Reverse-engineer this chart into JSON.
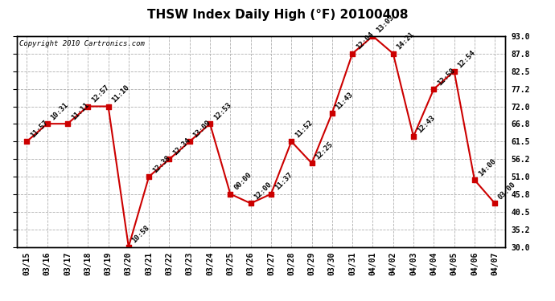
{
  "title": "THSW Index Daily High (°F) 20100408",
  "copyright": "Copyright 2010 Cartronics.com",
  "dates": [
    "03/15",
    "03/16",
    "03/17",
    "03/18",
    "03/19",
    "03/20",
    "03/21",
    "03/22",
    "03/23",
    "03/24",
    "03/25",
    "03/26",
    "03/27",
    "03/28",
    "03/29",
    "03/30",
    "03/31",
    "04/01",
    "04/02",
    "04/03",
    "04/04",
    "04/05",
    "04/06",
    "04/07"
  ],
  "values": [
    61.5,
    66.8,
    66.8,
    72.0,
    72.0,
    30.0,
    51.0,
    56.2,
    61.5,
    66.8,
    45.8,
    43.0,
    45.8,
    61.5,
    55.0,
    70.0,
    87.8,
    93.0,
    87.8,
    63.0,
    77.2,
    82.5,
    50.0,
    43.0
  ],
  "labels": [
    "11:57",
    "10:31",
    "11:11",
    "12:57",
    "11:10",
    "10:58",
    "12:38",
    "12:34",
    "13:09",
    "12:53",
    "00:00",
    "12:00",
    "11:37",
    "11:52",
    "12:25",
    "11:43",
    "12:04",
    "13:03",
    "14:21",
    "12:43",
    "12:58",
    "12:54",
    "14:00",
    "03:00"
  ],
  "line_color": "#cc0000",
  "marker_color": "#cc0000",
  "background_color": "#ffffff",
  "grid_color": "#b0b0b0",
  "title_fontsize": 11,
  "label_fontsize": 6.5,
  "tick_fontsize": 7.0,
  "copyright_fontsize": 6.5,
  "ylim_low": 30.0,
  "ylim_high": 93.0,
  "yticks": [
    30.0,
    35.2,
    40.5,
    45.8,
    51.0,
    56.2,
    61.5,
    66.8,
    72.0,
    77.2,
    82.5,
    87.8,
    93.0
  ]
}
